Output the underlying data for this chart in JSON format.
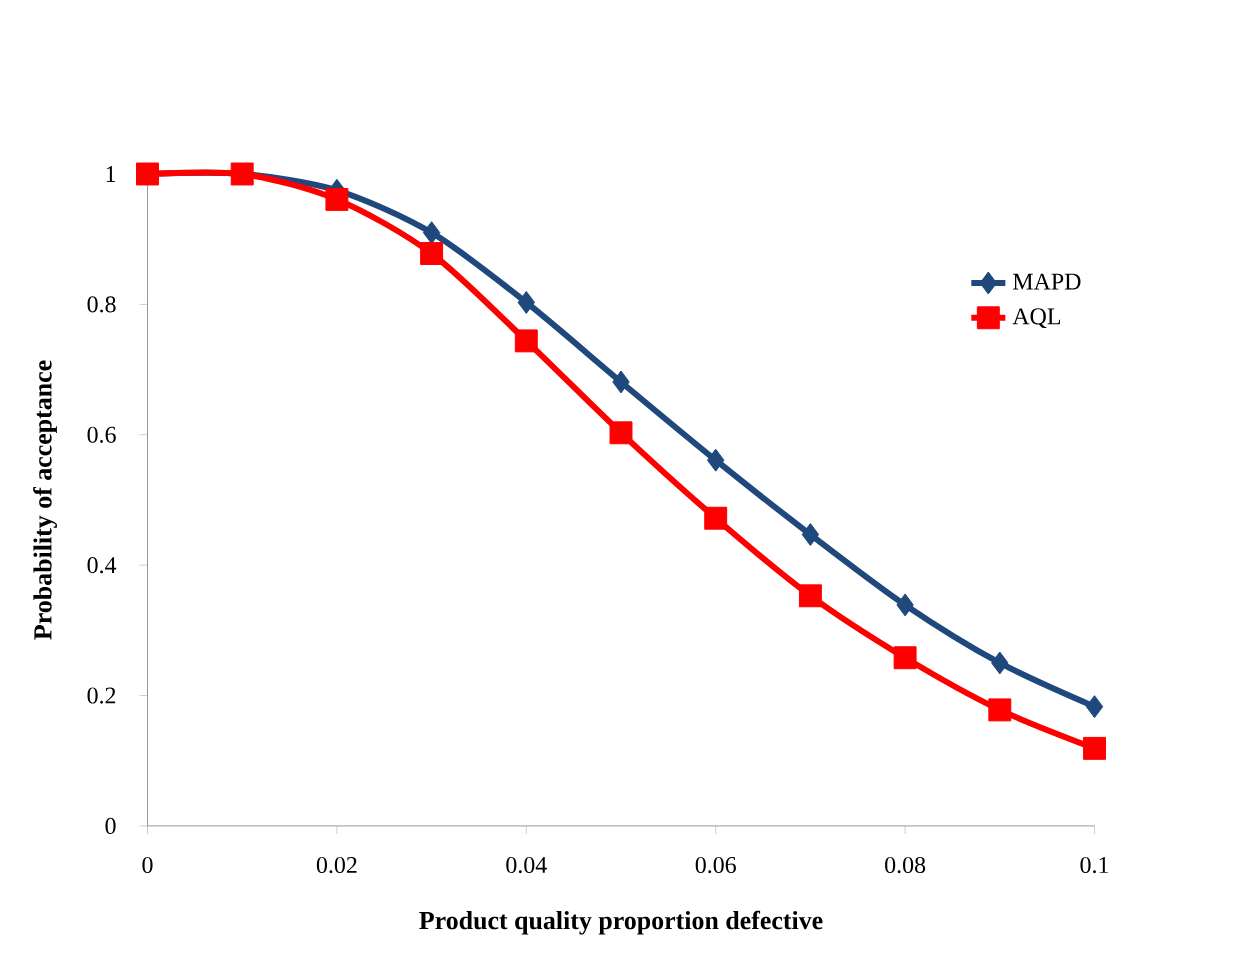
{
  "chart_data": {
    "type": "line",
    "xlabel": "Product quality proportion defective",
    "ylabel": "Probability of acceptance",
    "x": [
      0,
      0.01,
      0.02,
      0.03,
      0.04,
      0.05,
      0.06,
      0.07,
      0.08,
      0.09,
      0.1
    ],
    "series": [
      {
        "name": "MAPD",
        "color": "#1f497d",
        "marker": "diamond",
        "values": [
          1.0,
          1.0,
          0.975,
          0.91,
          0.803,
          0.681,
          0.561,
          0.447,
          0.339,
          0.25,
          0.183
        ]
      },
      {
        "name": "AQL",
        "color": "#ff0000",
        "marker": "square",
        "values": [
          1.0,
          1.0,
          0.961,
          0.878,
          0.744,
          0.603,
          0.472,
          0.353,
          0.258,
          0.178,
          0.119
        ]
      }
    ],
    "xlim": [
      0,
      0.1
    ],
    "xticks": [
      0,
      0.02,
      0.04,
      0.06,
      0.08,
      0.1
    ],
    "ylim": [
      0,
      1
    ],
    "yticks": [
      0,
      0.2,
      0.4,
      0.6,
      0.8,
      1
    ],
    "grid": false,
    "legend": "top right",
    "line_style": "solid"
  }
}
